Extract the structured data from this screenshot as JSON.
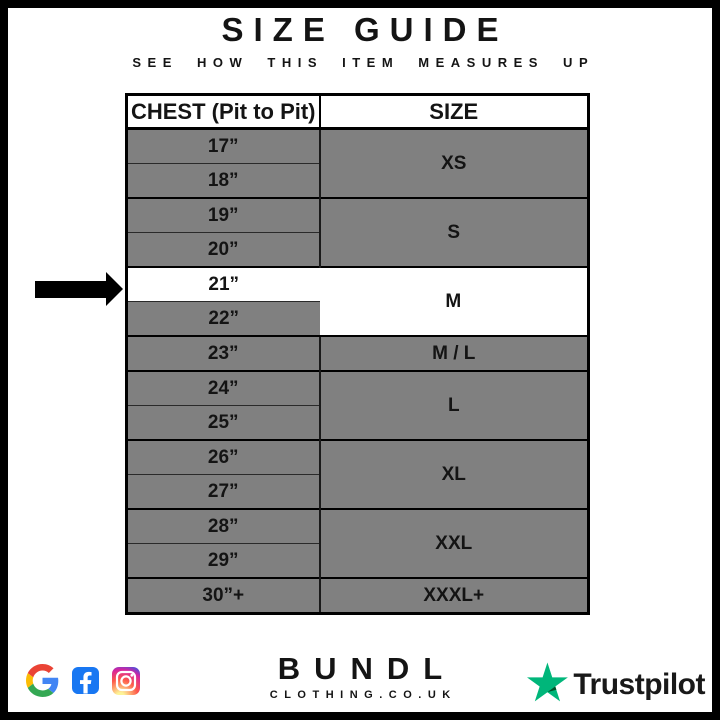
{
  "header": {
    "title": "SIZE GUIDE",
    "subtitle": "SEE HOW THIS ITEM MEASURES UP"
  },
  "size_table": {
    "columns": [
      "CHEST (Pit to Pit)",
      "SIZE"
    ],
    "groups": [
      {
        "size": "XS",
        "measurements": [
          "17”",
          "18”"
        ],
        "highlighted": false,
        "highlighted_measurement": null
      },
      {
        "size": "S",
        "measurements": [
          "19”",
          "20”"
        ],
        "highlighted": false,
        "highlighted_measurement": null
      },
      {
        "size": "M",
        "measurements": [
          "21”",
          "22”"
        ],
        "highlighted": true,
        "highlighted_measurement": "21”"
      },
      {
        "size": "M / L",
        "measurements": [
          "23”"
        ],
        "highlighted": false,
        "highlighted_measurement": null
      },
      {
        "size": "L",
        "measurements": [
          "24”",
          "25”"
        ],
        "highlighted": false,
        "highlighted_measurement": null
      },
      {
        "size": "XL",
        "measurements": [
          "26”",
          "27”"
        ],
        "highlighted": false,
        "highlighted_measurement": null
      },
      {
        "size": "XXL",
        "measurements": [
          "28”",
          "29”"
        ],
        "highlighted": false,
        "highlighted_measurement": null
      },
      {
        "size": "XXXL+",
        "measurements": [
          "30”+"
        ],
        "highlighted": false,
        "highlighted_measurement": null
      }
    ],
    "colors": {
      "cell_gray": "#808080",
      "highlight_white": "#ffffff",
      "border_black": "#000000"
    }
  },
  "annotation": {
    "arrow_color": "#000000",
    "points_to_measurement": "21”",
    "points_to_size": "M"
  },
  "footer": {
    "brand": {
      "name": "BUNDL",
      "domain": "CLOTHING.CO.UK"
    },
    "social_icons": [
      "google-icon",
      "facebook-icon",
      "instagram-icon"
    ],
    "trustpilot": {
      "label": "Trustpilot",
      "star_color": "#00B67A",
      "star_dark_color": "#005128"
    }
  }
}
